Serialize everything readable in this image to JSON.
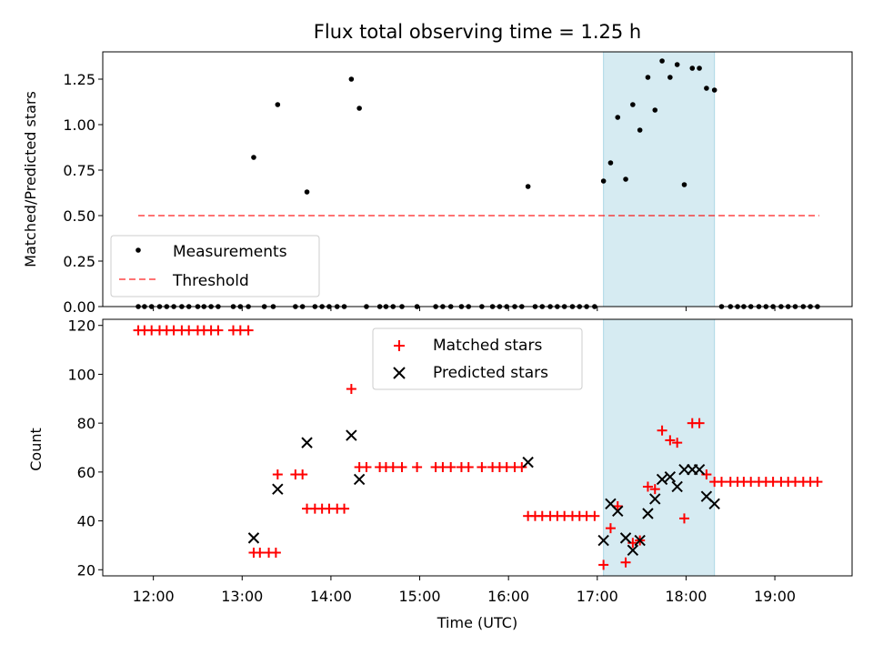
{
  "chart_data": [
    {
      "type": "scatter",
      "title": "Flux total observing time = 1.25 h",
      "xlabel": "",
      "ylabel": "Matched/Predicted stars",
      "xlim": [
        11.43,
        19.87
      ],
      "ylim": [
        0,
        1.4
      ],
      "yticks": [
        0.0,
        0.25,
        0.5,
        0.75,
        1.0,
        1.25
      ],
      "ytick_labels": [
        "0.00",
        "0.25",
        "0.50",
        "0.75",
        "1.00",
        "1.25"
      ],
      "shaded_span": [
        17.07,
        18.32
      ],
      "legend": [
        "Measurements",
        "Threshold"
      ],
      "threshold": {
        "name": "Threshold",
        "x": [
          11.83,
          19.5
        ],
        "y": 0.5
      },
      "series": [
        {
          "name": "Measurements",
          "points": [
            [
              11.83,
              0
            ],
            [
              11.9,
              0
            ],
            [
              11.98,
              0
            ],
            [
              12.07,
              0
            ],
            [
              12.15,
              0
            ],
            [
              12.23,
              0
            ],
            [
              12.32,
              0
            ],
            [
              12.4,
              0
            ],
            [
              12.5,
              0
            ],
            [
              12.57,
              0
            ],
            [
              12.65,
              0
            ],
            [
              12.73,
              0
            ],
            [
              12.9,
              0
            ],
            [
              12.98,
              0
            ],
            [
              13.07,
              0
            ],
            [
              13.13,
              0.82
            ],
            [
              13.25,
              0
            ],
            [
              13.35,
              0
            ],
            [
              13.4,
              1.11
            ],
            [
              13.6,
              0
            ],
            [
              13.68,
              0
            ],
            [
              13.73,
              0.63
            ],
            [
              13.82,
              0
            ],
            [
              13.9,
              0
            ],
            [
              13.98,
              0
            ],
            [
              14.07,
              0
            ],
            [
              14.15,
              0
            ],
            [
              14.23,
              1.25
            ],
            [
              14.32,
              1.09
            ],
            [
              14.4,
              0
            ],
            [
              14.55,
              0
            ],
            [
              14.62,
              0
            ],
            [
              14.7,
              0
            ],
            [
              14.8,
              0
            ],
            [
              14.97,
              0
            ],
            [
              15.18,
              0
            ],
            [
              15.26,
              0
            ],
            [
              15.35,
              0
            ],
            [
              15.47,
              0
            ],
            [
              15.55,
              0
            ],
            [
              15.7,
              0
            ],
            [
              15.82,
              0
            ],
            [
              15.9,
              0
            ],
            [
              15.98,
              0
            ],
            [
              16.07,
              0
            ],
            [
              16.15,
              0
            ],
            [
              16.22,
              0.66
            ],
            [
              16.3,
              0
            ],
            [
              16.38,
              0
            ],
            [
              16.47,
              0
            ],
            [
              16.55,
              0
            ],
            [
              16.63,
              0
            ],
            [
              16.72,
              0
            ],
            [
              16.8,
              0
            ],
            [
              16.88,
              0
            ],
            [
              16.97,
              0
            ],
            [
              17.07,
              0.69
            ],
            [
              17.15,
              0.79
            ],
            [
              17.23,
              1.04
            ],
            [
              17.32,
              0.7
            ],
            [
              17.4,
              1.11
            ],
            [
              17.48,
              0.97
            ],
            [
              17.57,
              1.26
            ],
            [
              17.65,
              1.08
            ],
            [
              17.73,
              1.35
            ],
            [
              17.82,
              1.26
            ],
            [
              17.9,
              1.33
            ],
            [
              17.98,
              0.67
            ],
            [
              18.07,
              1.31
            ],
            [
              18.15,
              1.31
            ],
            [
              18.23,
              1.2
            ],
            [
              18.32,
              1.19
            ],
            [
              18.4,
              0
            ],
            [
              18.5,
              0
            ],
            [
              18.58,
              0
            ],
            [
              18.65,
              0
            ],
            [
              18.73,
              0
            ],
            [
              18.82,
              0
            ],
            [
              18.9,
              0
            ],
            [
              18.98,
              0
            ],
            [
              19.07,
              0
            ],
            [
              19.15,
              0
            ],
            [
              19.23,
              0
            ],
            [
              19.32,
              0
            ],
            [
              19.4,
              0
            ],
            [
              19.48,
              0
            ]
          ]
        }
      ]
    },
    {
      "type": "scatter",
      "title": "",
      "xlabel": "Time (UTC)",
      "ylabel": "Count",
      "xlim": [
        11.43,
        19.87
      ],
      "ylim": [
        17.5,
        122.5
      ],
      "xticks": [
        12,
        13,
        14,
        15,
        16,
        17,
        18,
        19
      ],
      "xtick_labels": [
        "12:00",
        "13:00",
        "14:00",
        "15:00",
        "16:00",
        "17:00",
        "18:00",
        "19:00"
      ],
      "yticks": [
        20,
        40,
        60,
        80,
        100,
        120
      ],
      "ytick_labels": [
        "20",
        "40",
        "60",
        "80",
        "100",
        "120"
      ],
      "shaded_span": [
        17.07,
        18.32
      ],
      "legend": [
        "Matched stars",
        "Predicted stars"
      ],
      "series": [
        {
          "name": "Matched stars",
          "color": "#ff0000",
          "points": [
            [
              11.83,
              118
            ],
            [
              11.9,
              118
            ],
            [
              11.98,
              118
            ],
            [
              12.07,
              118
            ],
            [
              12.15,
              118
            ],
            [
              12.23,
              118
            ],
            [
              12.32,
              118
            ],
            [
              12.4,
              118
            ],
            [
              12.5,
              118
            ],
            [
              12.57,
              118
            ],
            [
              12.65,
              118
            ],
            [
              12.73,
              118
            ],
            [
              12.9,
              118
            ],
            [
              12.98,
              118
            ],
            [
              13.07,
              118
            ],
            [
              13.13,
              27
            ],
            [
              13.2,
              27
            ],
            [
              13.3,
              27
            ],
            [
              13.38,
              27
            ],
            [
              13.4,
              59
            ],
            [
              13.6,
              59
            ],
            [
              13.68,
              59
            ],
            [
              13.73,
              45
            ],
            [
              13.82,
              45
            ],
            [
              13.9,
              45
            ],
            [
              13.98,
              45
            ],
            [
              14.07,
              45
            ],
            [
              14.15,
              45
            ],
            [
              14.23,
              94
            ],
            [
              14.32,
              62
            ],
            [
              14.4,
              62
            ],
            [
              14.55,
              62
            ],
            [
              14.62,
              62
            ],
            [
              14.7,
              62
            ],
            [
              14.8,
              62
            ],
            [
              14.97,
              62
            ],
            [
              15.18,
              62
            ],
            [
              15.26,
              62
            ],
            [
              15.35,
              62
            ],
            [
              15.47,
              62
            ],
            [
              15.55,
              62
            ],
            [
              15.7,
              62
            ],
            [
              15.82,
              62
            ],
            [
              15.9,
              62
            ],
            [
              15.98,
              62
            ],
            [
              16.07,
              62
            ],
            [
              16.15,
              62
            ],
            [
              16.22,
              42
            ],
            [
              16.3,
              42
            ],
            [
              16.38,
              42
            ],
            [
              16.47,
              42
            ],
            [
              16.55,
              42
            ],
            [
              16.63,
              42
            ],
            [
              16.72,
              42
            ],
            [
              16.8,
              42
            ],
            [
              16.88,
              42
            ],
            [
              16.97,
              42
            ],
            [
              17.07,
              22
            ],
            [
              17.15,
              37
            ],
            [
              17.23,
              46
            ],
            [
              17.32,
              23
            ],
            [
              17.4,
              31
            ],
            [
              17.48,
              32
            ],
            [
              17.57,
              54
            ],
            [
              17.65,
              53
            ],
            [
              17.73,
              77
            ],
            [
              17.82,
              73
            ],
            [
              17.9,
              72
            ],
            [
              17.98,
              41
            ],
            [
              18.07,
              80
            ],
            [
              18.15,
              80
            ],
            [
              18.23,
              59
            ],
            [
              18.32,
              56
            ],
            [
              18.4,
              56
            ],
            [
              18.5,
              56
            ],
            [
              18.58,
              56
            ],
            [
              18.65,
              56
            ],
            [
              18.73,
              56
            ],
            [
              18.82,
              56
            ],
            [
              18.9,
              56
            ],
            [
              18.98,
              56
            ],
            [
              19.07,
              56
            ],
            [
              19.15,
              56
            ],
            [
              19.23,
              56
            ],
            [
              19.32,
              56
            ],
            [
              19.4,
              56
            ],
            [
              19.48,
              56
            ]
          ]
        },
        {
          "name": "Predicted stars",
          "color": "#000000",
          "points": [
            [
              13.13,
              33
            ],
            [
              13.4,
              53
            ],
            [
              13.73,
              72
            ],
            [
              14.23,
              75
            ],
            [
              14.32,
              57
            ],
            [
              16.22,
              64
            ],
            [
              17.07,
              32
            ],
            [
              17.15,
              47
            ],
            [
              17.23,
              44
            ],
            [
              17.32,
              33
            ],
            [
              17.4,
              28
            ],
            [
              17.48,
              32
            ],
            [
              17.57,
              43
            ],
            [
              17.65,
              49
            ],
            [
              17.73,
              57
            ],
            [
              17.82,
              58
            ],
            [
              17.9,
              54
            ],
            [
              17.98,
              61
            ],
            [
              18.07,
              61
            ],
            [
              18.15,
              61
            ],
            [
              18.23,
              50
            ],
            [
              18.32,
              47
            ]
          ]
        }
      ]
    }
  ]
}
